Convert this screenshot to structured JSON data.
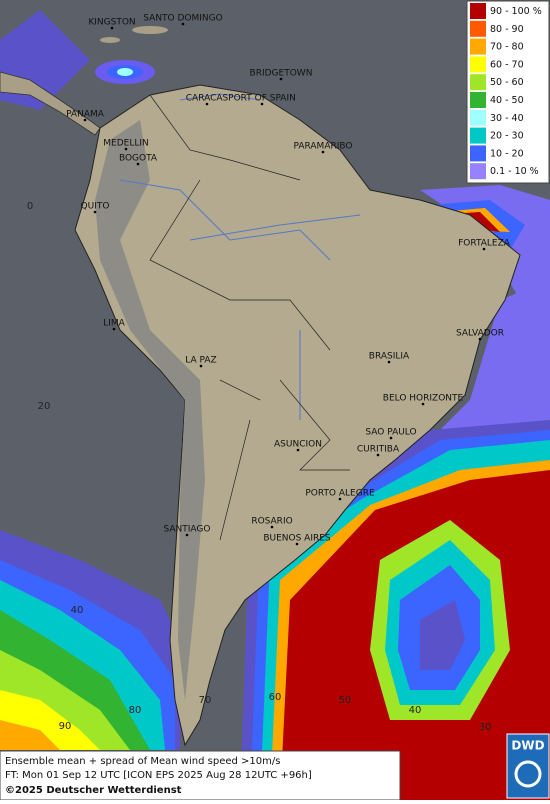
{
  "cities": [
    "KINGSTON",
    "SANTO DOMINGO",
    "BRIDGETOWN",
    "CARACAS",
    "PORT OF SPAIN",
    "PANAMA",
    "MEDELLIN",
    "BOGOTA",
    "PARAMARIBO",
    "QUITO",
    "FORTALEZA",
    "LIMA",
    "SALVADOR",
    "BRASILIA",
    "LA PAZ",
    "BELO HORIZONTE",
    "SAO PAULO",
    "ASUNCION",
    "CURITIBA",
    "PORTO ALEGRE",
    "SANTIAGO",
    "ROSARIO",
    "BUENOS AIRES"
  ],
  "grid_labels": [
    "0",
    "20",
    "40",
    "90",
    "80",
    "70",
    "60",
    "50",
    "40",
    "30"
  ],
  "legend": [
    {
      "label": "90 - 100 %",
      "color": "#b40000"
    },
    {
      "label": "80 - 90",
      "color": "#ff5a00"
    },
    {
      "label": "70 - 80",
      "color": "#ffa800"
    },
    {
      "label": "60 - 70",
      "color": "#ffff00"
    },
    {
      "label": "50 - 60",
      "color": "#a0e628"
    },
    {
      "label": "40 - 50",
      "color": "#32b432"
    },
    {
      "label": "30 - 40",
      "color": "#a0ffff"
    },
    {
      "label": "20 - 30",
      "color": "#00c8c8"
    },
    {
      "label": "10 - 20",
      "color": "#3c64ff"
    },
    {
      "label": "0.1 - 10 %",
      "color": "#9682ff"
    }
  ],
  "footer": {
    "line1": "Ensemble mean + spread of Mean wind speed >10m/s",
    "line2": "FT: Mon 01 Sep 12 UTC [ICON EPS 2025 Aug 28 12UTC +96h]",
    "line3": "©2025 Deutscher Wetterdienst"
  },
  "logo": "DWD"
}
